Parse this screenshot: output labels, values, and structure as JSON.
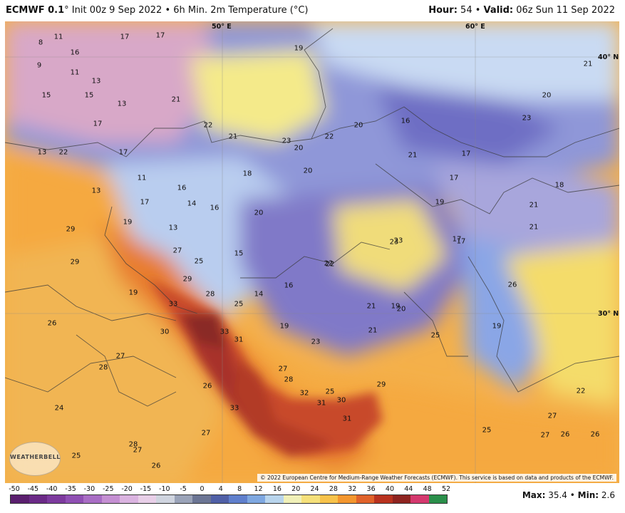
{
  "header": {
    "model": "ECMWF 0.1",
    "degree": "°",
    "title_rest": " Init 00z 9 Sep 2022 • 6h Min. 2m Temperature (°C)",
    "hour_label": "Hour:",
    "hour_value": "54",
    "bullet": "•",
    "valid_label": "Valid:",
    "valid_value": "06z Sun 11 Sep 2022"
  },
  "map": {
    "coord_labels": [
      {
        "text": "50° E"
      },
      {
        "text": "60° E"
      },
      {
        "text": "40° N"
      },
      {
        "text": "30° N"
      }
    ],
    "value_labels": [
      "8",
      "11",
      "17",
      "17",
      "9",
      "16",
      "11",
      "13",
      "15",
      "15",
      "17",
      "13",
      "21",
      "22",
      "22",
      "13",
      "17",
      "11",
      "13",
      "16",
      "16",
      "18",
      "14",
      "17",
      "19",
      "20",
      "20",
      "13",
      "20",
      "21",
      "22",
      "23",
      "19",
      "16",
      "21",
      "17",
      "20",
      "17",
      "17",
      "22",
      "29",
      "29",
      "25",
      "27",
      "28",
      "29",
      "33",
      "19",
      "15",
      "14",
      "16",
      "19",
      "25",
      "30",
      "33",
      "31",
      "26",
      "27",
      "28",
      "23",
      "21",
      "19",
      "22",
      "23",
      "26",
      "19",
      "25",
      "32",
      "31",
      "30",
      "31",
      "29",
      "27",
      "28",
      "33",
      "24",
      "27",
      "28",
      "27",
      "25",
      "26",
      "26",
      "25",
      "22",
      "27",
      "25",
      "27",
      "26",
      "26",
      "18",
      "21",
      "21",
      "21",
      "23",
      "20",
      "19",
      "23",
      "17",
      "20",
      "21"
    ],
    "credit": "© 2022 European Centre for Medium-Range Weather Forecasts (ECMWF). This service is based on data and products of the ECMWF.",
    "logo_text": "WEATHERBELL"
  },
  "colorbar": {
    "ticks": [
      "-50",
      "-45",
      "-40",
      "-35",
      "-30",
      "-25",
      "-20",
      "-15",
      "-10",
      "-5",
      "0",
      "4",
      "8",
      "12",
      "16",
      "20",
      "24",
      "28",
      "32",
      "36",
      "40",
      "44",
      "48",
      "52"
    ],
    "colors": [
      "#5a1f6e",
      "#6b2a87",
      "#7d3a9e",
      "#8f4fb3",
      "#a86dc4",
      "#c48fd2",
      "#dab3e0",
      "#e8cfe8",
      "#cfd4df",
      "#9aa3b8",
      "#6b7594",
      "#4f5fa6",
      "#5f7fcc",
      "#7ea7e0",
      "#b8d4ec",
      "#f0f0b8",
      "#f5e07a",
      "#f7c24a",
      "#f3962e",
      "#e0622a",
      "#b8321f",
      "#8e2420",
      "#d4386e",
      "#2a8f4a"
    ]
  },
  "stats": {
    "max_label": "Max:",
    "max_value": "35.4",
    "sep": "•",
    "min_label": "Min:",
    "min_value": "2.6"
  },
  "colors": {
    "purple": "#7a78c8",
    "blue": "#9fb4e8",
    "lightblue": "#cfe0f4",
    "pink": "#e8b4c4",
    "yellow": "#f4e27a",
    "lightorange": "#f7c45a",
    "orange": "#f39a35",
    "darkorange": "#e26a28",
    "red": "#c8402a",
    "darkred": "#8e2a26"
  }
}
